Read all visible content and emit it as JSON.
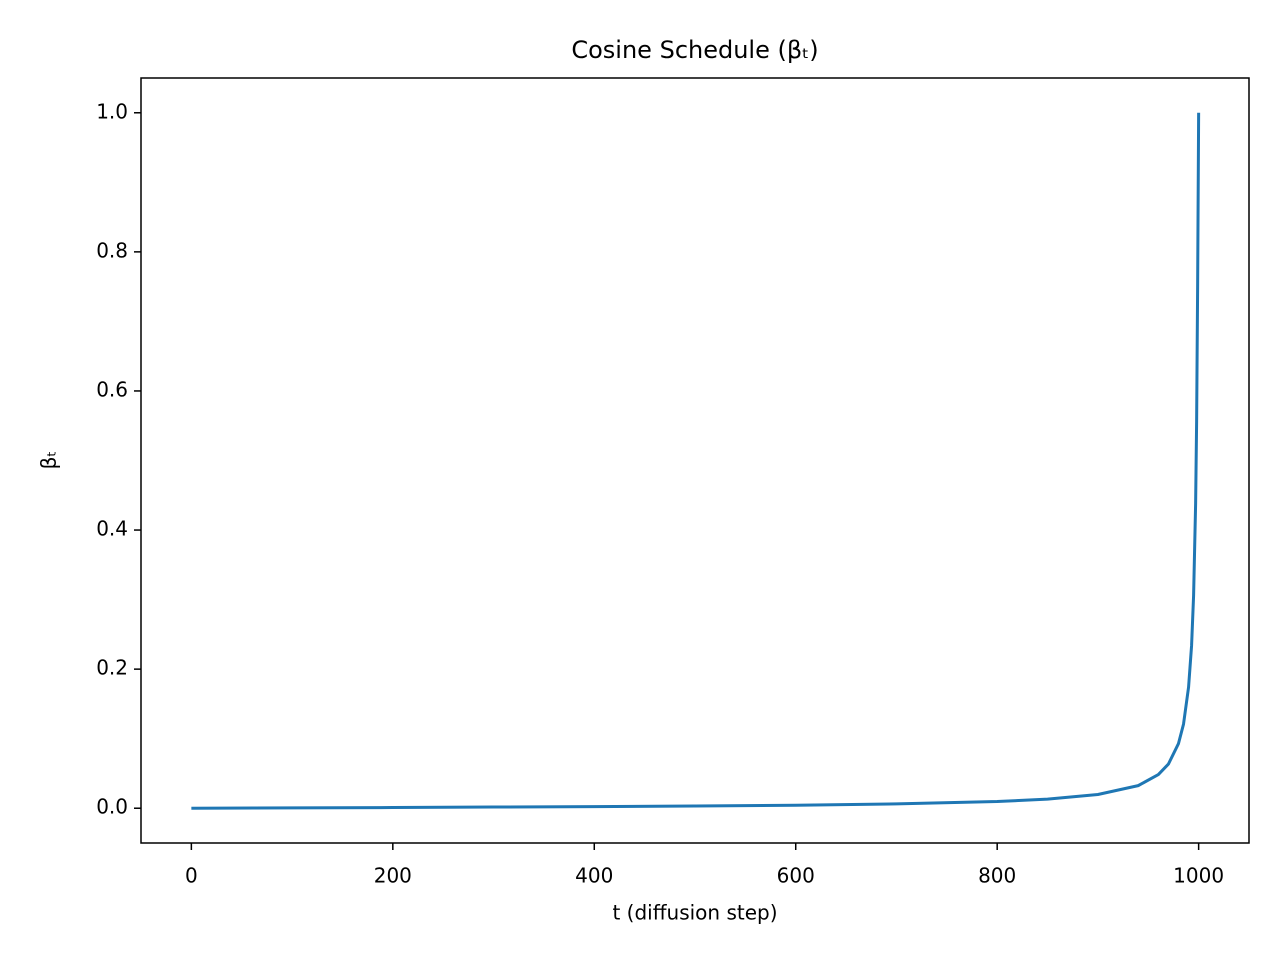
{
  "chart_data": {
    "type": "line",
    "title": "Cosine Schedule (βₜ)",
    "x_label": "t (diffusion step)",
    "y_label": "βₜ",
    "x": [
      0,
      100,
      200,
      300,
      400,
      500,
      600,
      700,
      800,
      850,
      900,
      940,
      960,
      970,
      980,
      985,
      990,
      993,
      995,
      997,
      998,
      999,
      1000
    ],
    "series": [
      {
        "name": "βₜ",
        "color": "#1f77b4",
        "values": [
          4e-05,
          0.0005,
          0.001,
          0.0017,
          0.0023,
          0.0032,
          0.0043,
          0.0062,
          0.0096,
          0.0131,
          0.0197,
          0.0325,
          0.0484,
          0.0635,
          0.093,
          0.121,
          0.174,
          0.234,
          0.306,
          0.4375,
          0.556,
          0.75,
          1.0
        ]
      }
    ],
    "xlim": [
      -50,
      1050
    ],
    "ylim": [
      -0.05,
      1.05
    ],
    "xticks": [
      0,
      200,
      400,
      600,
      800,
      1000
    ],
    "yticks": [
      {
        "value": 0,
        "label": "0.0"
      },
      0.2,
      0.4,
      0.6,
      0.8,
      {
        "value": 1,
        "label": "1.0"
      }
    ],
    "grid": false
  }
}
